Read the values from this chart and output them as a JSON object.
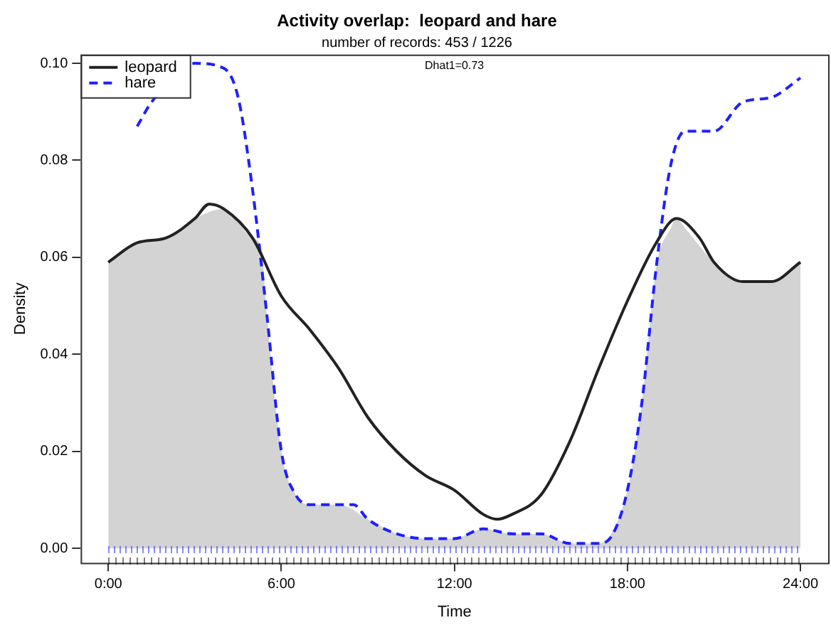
{
  "chart_data": {
    "type": "line",
    "title": "Activity overlap:  leopard and hare",
    "subtitle": "number of records: 453 / 1226",
    "xlabel": "Time",
    "ylabel": "Density",
    "annotations": [
      "Dhat1=0.73"
    ],
    "xlim": [
      -0.96,
      24.96
    ],
    "ylim": [
      -0.003,
      0.1018
    ],
    "xticks": [
      {
        "value": 0,
        "label": "0:00"
      },
      {
        "value": 6,
        "label": "6:00"
      },
      {
        "value": 12,
        "label": "12:00"
      },
      {
        "value": 18,
        "label": "18:00"
      },
      {
        "value": 24,
        "label": "24:00"
      }
    ],
    "yticks": [
      {
        "value": 0,
        "label": "0.00"
      },
      {
        "value": 0.02,
        "label": "0.02"
      },
      {
        "value": 0.04,
        "label": "0.04"
      },
      {
        "value": 0.06,
        "label": "0.06"
      },
      {
        "value": 0.08,
        "label": "0.08"
      },
      {
        "value": 0.1,
        "label": "0.10"
      }
    ],
    "grid": false,
    "legend": "top left",
    "series": [
      {
        "type": "area",
        "color": "#d3d3d3",
        "x": [
          0,
          1,
          2,
          3,
          4,
          5,
          5.3,
          5.5,
          6,
          6.5,
          7,
          8,
          9,
          10,
          11,
          12,
          13,
          14,
          15,
          16,
          17,
          18,
          18.5,
          19,
          19.5,
          19.7,
          20,
          21,
          22,
          23,
          24
        ],
        "values": [
          0.059,
          0.063,
          0.064,
          0.068,
          0.07,
          0.064,
          0.062,
          0.048,
          0.02,
          0.011,
          0.009,
          0.009,
          0.006,
          0.003,
          0.002,
          0.002,
          0.004,
          0.003,
          0.003,
          0.001,
          0.001,
          0.012,
          0.03,
          0.058,
          0.066,
          0.068,
          0.066,
          0.059,
          0.055,
          0.055,
          0.059
        ]
      },
      {
        "type": "line",
        "name": "leopard",
        "color": "#222222",
        "line_style": "solid",
        "x": [
          0,
          1,
          2,
          3,
          3.5,
          4,
          5,
          6,
          7,
          8,
          9,
          10,
          11,
          12,
          13,
          13.5,
          14,
          15,
          16,
          17,
          18,
          19,
          19.7,
          20.5,
          21,
          22,
          23,
          24
        ],
        "values": [
          0.059,
          0.063,
          0.064,
          0.068,
          0.071,
          0.07,
          0.064,
          0.052,
          0.045,
          0.037,
          0.027,
          0.02,
          0.015,
          0.012,
          0.007,
          0.006,
          0.007,
          0.011,
          0.022,
          0.037,
          0.051,
          0.063,
          0.068,
          0.064,
          0.059,
          0.055,
          0.055,
          0.059
        ]
      },
      {
        "type": "line",
        "name": "hare",
        "color": "#1f1fff",
        "line_style": "dashed",
        "x": [
          1,
          1.5,
          3,
          4,
          4.5,
          5,
          5.5,
          6,
          6.5,
          7,
          8,
          8.5,
          9,
          10,
          11,
          12,
          13,
          14,
          15,
          16,
          17,
          17.5,
          18,
          18.5,
          19,
          19.5,
          20,
          21,
          22,
          23,
          24
        ],
        "values": [
          0.087,
          0.092,
          0.1,
          0.099,
          0.093,
          0.074,
          0.048,
          0.02,
          0.011,
          0.009,
          0.009,
          0.009,
          0.006,
          0.003,
          0.002,
          0.002,
          0.004,
          0.003,
          0.003,
          0.001,
          0.001,
          0.003,
          0.012,
          0.03,
          0.058,
          0.079,
          0.086,
          0.086,
          0.092,
          0.093,
          0.097
        ]
      }
    ]
  }
}
